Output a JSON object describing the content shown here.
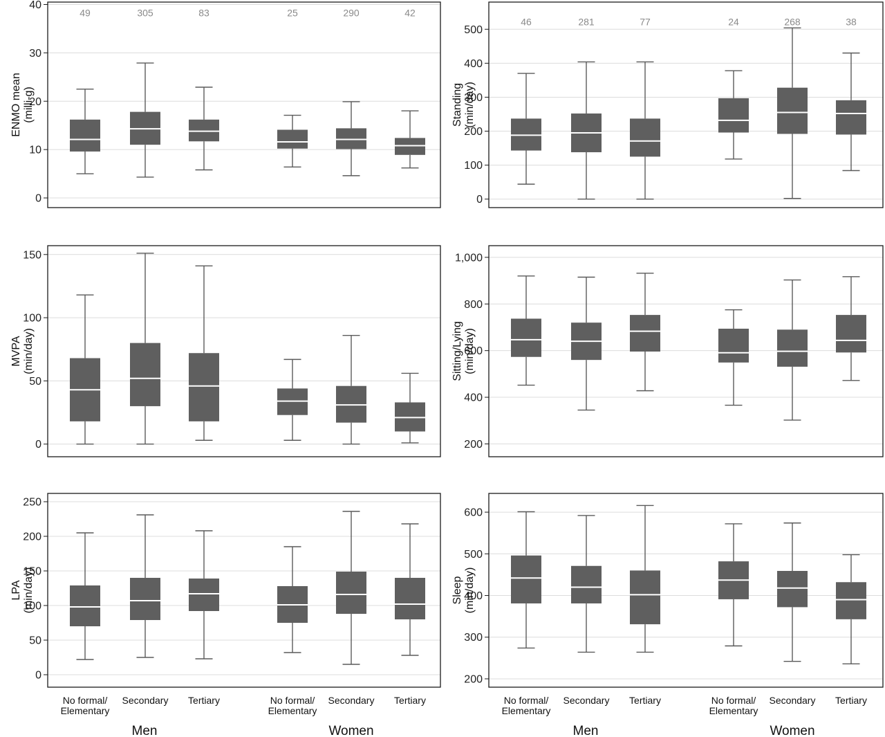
{
  "colors": {
    "box": "#5f5f5f",
    "median": "#ffffff",
    "whisker": "#5a5a5a",
    "grid": "#dcdcdc",
    "frame": "#1a1a1a"
  },
  "axis_labels": {
    "categories": [
      "No formal/\nElementary",
      "Secondary",
      "Tertiary",
      "No formal/\nElementary",
      "Secondary",
      "Tertiary"
    ],
    "groups": [
      "Men",
      "Women"
    ]
  },
  "chart_data": [
    {
      "type": "boxplot",
      "ylabel": [
        "ENMO mean",
        "(milli-g)"
      ],
      "ylim": [
        -2,
        40.5
      ],
      "yticks": [
        0,
        10,
        20,
        30,
        40
      ],
      "yticklabels": [
        "0",
        "10",
        "20",
        "30",
        "40"
      ],
      "n_labels": [
        "49",
        "305",
        "83",
        "25",
        "290",
        "42"
      ],
      "n_y": 38.3,
      "boxes": [
        {
          "group": "Men",
          "category": "No formal/Elementary",
          "min": 5.0,
          "q1": 9.6,
          "median": 12.1,
          "q3": 16.2,
          "max": 22.5
        },
        {
          "group": "Men",
          "category": "Secondary",
          "min": 4.3,
          "q1": 11.0,
          "median": 14.3,
          "q3": 17.8,
          "max": 27.9
        },
        {
          "group": "Men",
          "category": "Tertiary",
          "min": 5.8,
          "q1": 11.7,
          "median": 13.8,
          "q3": 16.2,
          "max": 22.9
        },
        {
          "group": "Women",
          "category": "No formal/Elementary",
          "min": 6.4,
          "q1": 10.2,
          "median": 11.6,
          "q3": 14.1,
          "max": 17.1
        },
        {
          "group": "Women",
          "category": "Secondary",
          "min": 4.6,
          "q1": 10.1,
          "median": 12.1,
          "q3": 14.4,
          "max": 19.9
        },
        {
          "group": "Women",
          "category": "Tertiary",
          "min": 6.2,
          "q1": 8.9,
          "median": 10.8,
          "q3": 12.4,
          "max": 18.0
        }
      ]
    },
    {
      "type": "boxplot",
      "ylabel": [
        "Standing",
        "(min/day)"
      ],
      "ylim": [
        -25,
        580
      ],
      "yticks": [
        0,
        100,
        200,
        300,
        400,
        500
      ],
      "yticklabels": [
        "0",
        "100",
        "200",
        "300",
        "400",
        "500"
      ],
      "n_labels": [
        "46",
        "281",
        "77",
        "24",
        "268",
        "38"
      ],
      "n_y": 522,
      "boxes": [
        {
          "group": "Men",
          "category": "No formal/Elementary",
          "min": 44,
          "q1": 143,
          "median": 188,
          "q3": 237,
          "max": 370
        },
        {
          "group": "Men",
          "category": "Secondary",
          "min": 0,
          "q1": 138,
          "median": 195,
          "q3": 252,
          "max": 404
        },
        {
          "group": "Men",
          "category": "Tertiary",
          "min": 0,
          "q1": 125,
          "median": 171,
          "q3": 237,
          "max": 404
        },
        {
          "group": "Women",
          "category": "No formal/Elementary",
          "min": 118,
          "q1": 196,
          "median": 232,
          "q3": 297,
          "max": 378
        },
        {
          "group": "Women",
          "category": "Secondary",
          "min": 2,
          "q1": 192,
          "median": 255,
          "q3": 328,
          "max": 504
        },
        {
          "group": "Women",
          "category": "Tertiary",
          "min": 84,
          "q1": 190,
          "median": 252,
          "q3": 291,
          "max": 430
        }
      ]
    },
    {
      "type": "boxplot",
      "ylabel": [
        "MVPA",
        "(min/day)"
      ],
      "ylim": [
        -10,
        157
      ],
      "yticks": [
        0,
        50,
        100,
        150
      ],
      "yticklabels": [
        "0",
        "50",
        "100",
        "150"
      ],
      "boxes": [
        {
          "group": "Men",
          "category": "No formal/Elementary",
          "min": 0,
          "q1": 18,
          "median": 43,
          "q3": 68,
          "max": 118
        },
        {
          "group": "Men",
          "category": "Secondary",
          "min": 0,
          "q1": 30,
          "median": 52,
          "q3": 80,
          "max": 151
        },
        {
          "group": "Men",
          "category": "Tertiary",
          "min": 3,
          "q1": 18,
          "median": 46,
          "q3": 72,
          "max": 141
        },
        {
          "group": "Women",
          "category": "No formal/Elementary",
          "min": 3,
          "q1": 23,
          "median": 34,
          "q3": 44,
          "max": 67
        },
        {
          "group": "Women",
          "category": "Secondary",
          "min": 0,
          "q1": 17,
          "median": 31,
          "q3": 46,
          "max": 86
        },
        {
          "group": "Women",
          "category": "Tertiary",
          "min": 1,
          "q1": 10,
          "median": 21,
          "q3": 33,
          "max": 56
        }
      ]
    },
    {
      "type": "boxplot",
      "ylabel": [
        "Sitting/Lying",
        "(min/day)"
      ],
      "ylim": [
        145,
        1050
      ],
      "yticks": [
        200,
        400,
        600,
        800,
        1000
      ],
      "yticklabels": [
        "200",
        "400",
        "600",
        "800",
        "1,000"
      ],
      "boxes": [
        {
          "group": "Men",
          "category": "No formal/Elementary",
          "min": 452,
          "q1": 573,
          "median": 647,
          "q3": 737,
          "max": 920
        },
        {
          "group": "Men",
          "category": "Secondary",
          "min": 345,
          "q1": 560,
          "median": 640,
          "q3": 720,
          "max": 915
        },
        {
          "group": "Men",
          "category": "Tertiary",
          "min": 428,
          "q1": 596,
          "median": 683,
          "q3": 753,
          "max": 932
        },
        {
          "group": "Women",
          "category": "No formal/Elementary",
          "min": 366,
          "q1": 549,
          "median": 591,
          "q3": 694,
          "max": 775
        },
        {
          "group": "Women",
          "category": "Secondary",
          "min": 302,
          "q1": 531,
          "median": 597,
          "q3": 690,
          "max": 903
        },
        {
          "group": "Women",
          "category": "Tertiary",
          "min": 472,
          "q1": 592,
          "median": 644,
          "q3": 753,
          "max": 917
        }
      ]
    },
    {
      "type": "boxplot",
      "ylabel": [
        "LPA",
        "(min/day)"
      ],
      "ylim": [
        -18,
        262
      ],
      "yticks": [
        0,
        50,
        100,
        150,
        200,
        250
      ],
      "yticklabels": [
        "0",
        "50",
        "100",
        "150",
        "200",
        "250"
      ],
      "boxes": [
        {
          "group": "Men",
          "category": "No formal/Elementary",
          "min": 22,
          "q1": 70,
          "median": 98,
          "q3": 129,
          "max": 205
        },
        {
          "group": "Men",
          "category": "Secondary",
          "min": 25,
          "q1": 79,
          "median": 107,
          "q3": 140,
          "max": 231
        },
        {
          "group": "Men",
          "category": "Tertiary",
          "min": 23,
          "q1": 92,
          "median": 117,
          "q3": 139,
          "max": 208
        },
        {
          "group": "Women",
          "category": "No formal/Elementary",
          "min": 32,
          "q1": 75,
          "median": 101,
          "q3": 128,
          "max": 185
        },
        {
          "group": "Women",
          "category": "Secondary",
          "min": 15,
          "q1": 88,
          "median": 116,
          "q3": 149,
          "max": 236
        },
        {
          "group": "Women",
          "category": "Tertiary",
          "min": 28,
          "q1": 80,
          "median": 102,
          "q3": 140,
          "max": 218
        }
      ]
    },
    {
      "type": "boxplot",
      "ylabel": [
        "Sleep",
        "(min/day)"
      ],
      "ylim": [
        180,
        645
      ],
      "yticks": [
        200,
        300,
        400,
        500,
        600
      ],
      "yticklabels": [
        "200",
        "300",
        "400",
        "500",
        "600"
      ],
      "boxes": [
        {
          "group": "Men",
          "category": "No formal/Elementary",
          "min": 274,
          "q1": 381,
          "median": 442,
          "q3": 496,
          "max": 601
        },
        {
          "group": "Men",
          "category": "Secondary",
          "min": 264,
          "q1": 381,
          "median": 420,
          "q3": 471,
          "max": 592
        },
        {
          "group": "Men",
          "category": "Tertiary",
          "min": 264,
          "q1": 331,
          "median": 402,
          "q3": 460,
          "max": 616
        },
        {
          "group": "Women",
          "category": "No formal/Elementary",
          "min": 279,
          "q1": 391,
          "median": 437,
          "q3": 482,
          "max": 572
        },
        {
          "group": "Women",
          "category": "Secondary",
          "min": 242,
          "q1": 372,
          "median": 418,
          "q3": 459,
          "max": 574
        },
        {
          "group": "Women",
          "category": "Tertiary",
          "min": 236,
          "q1": 343,
          "median": 390,
          "q3": 432,
          "max": 498
        }
      ]
    }
  ]
}
